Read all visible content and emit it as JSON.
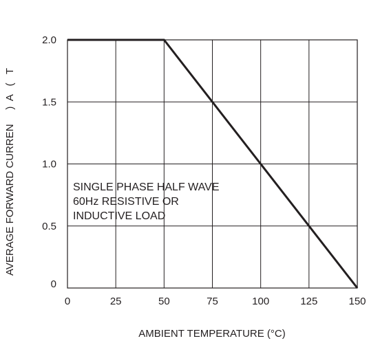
{
  "chart_data": {
    "type": "line",
    "xlabel": "AMBIENT TEMPERATURE (°C)",
    "ylabel": "AVERAGE FORWARD CURREN     )  A   (   T",
    "x_ticks": [
      "0",
      "25",
      "50",
      "75",
      "100",
      "125",
      "150"
    ],
    "y_ticks": [
      "0",
      "0.5",
      "1.0",
      "1.5",
      "2.0"
    ],
    "xlim": [
      0,
      150
    ],
    "ylim": [
      0,
      2.0
    ],
    "grid": true,
    "series": [
      {
        "x": [
          0,
          50,
          150
        ],
        "y": [
          2.0,
          2.0,
          0
        ]
      }
    ],
    "annotation": {
      "lines": [
        "SINGLE PHASE HALF WAVE",
        "60Hz RESISTIVE OR",
        "INDUCTIVE LOAD"
      ]
    }
  }
}
